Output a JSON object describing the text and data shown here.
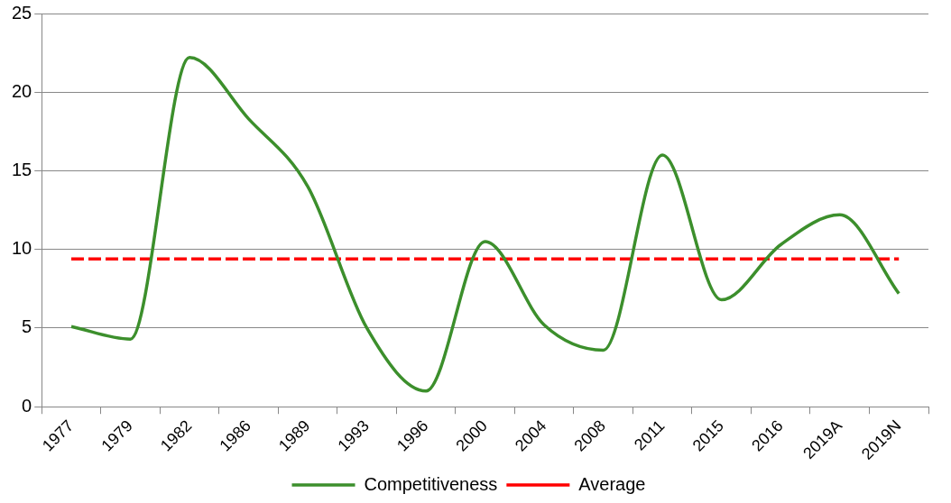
{
  "chart_data": {
    "type": "line",
    "categories": [
      "1977",
      "1979",
      "1982",
      "1986",
      "1989",
      "1993",
      "1996",
      "2000",
      "2004",
      "2008",
      "2011",
      "2015",
      "2016",
      "2019A",
      "2019N"
    ],
    "series": [
      {
        "name": "Competitiveness",
        "color": "#3c8f2c",
        "line_style": "solid",
        "values": [
          5.1,
          4.3,
          22.2,
          18.3,
          14.0,
          5.0,
          1.0,
          10.5,
          5.2,
          3.6,
          16.0,
          6.8,
          10.3,
          12.2,
          7.2
        ]
      },
      {
        "name": "Average",
        "color": "#ff0000",
        "line_style": "dashed",
        "values": [
          9.4,
          9.4,
          9.4,
          9.4,
          9.4,
          9.4,
          9.4,
          9.4,
          9.4,
          9.4,
          9.4,
          9.4,
          9.4,
          9.4,
          9.4
        ]
      }
    ],
    "ylim": [
      0,
      25
    ],
    "yticks": [
      0,
      5,
      10,
      15,
      20,
      25
    ],
    "grid": "y",
    "legend": "bottom",
    "marker": "none"
  }
}
